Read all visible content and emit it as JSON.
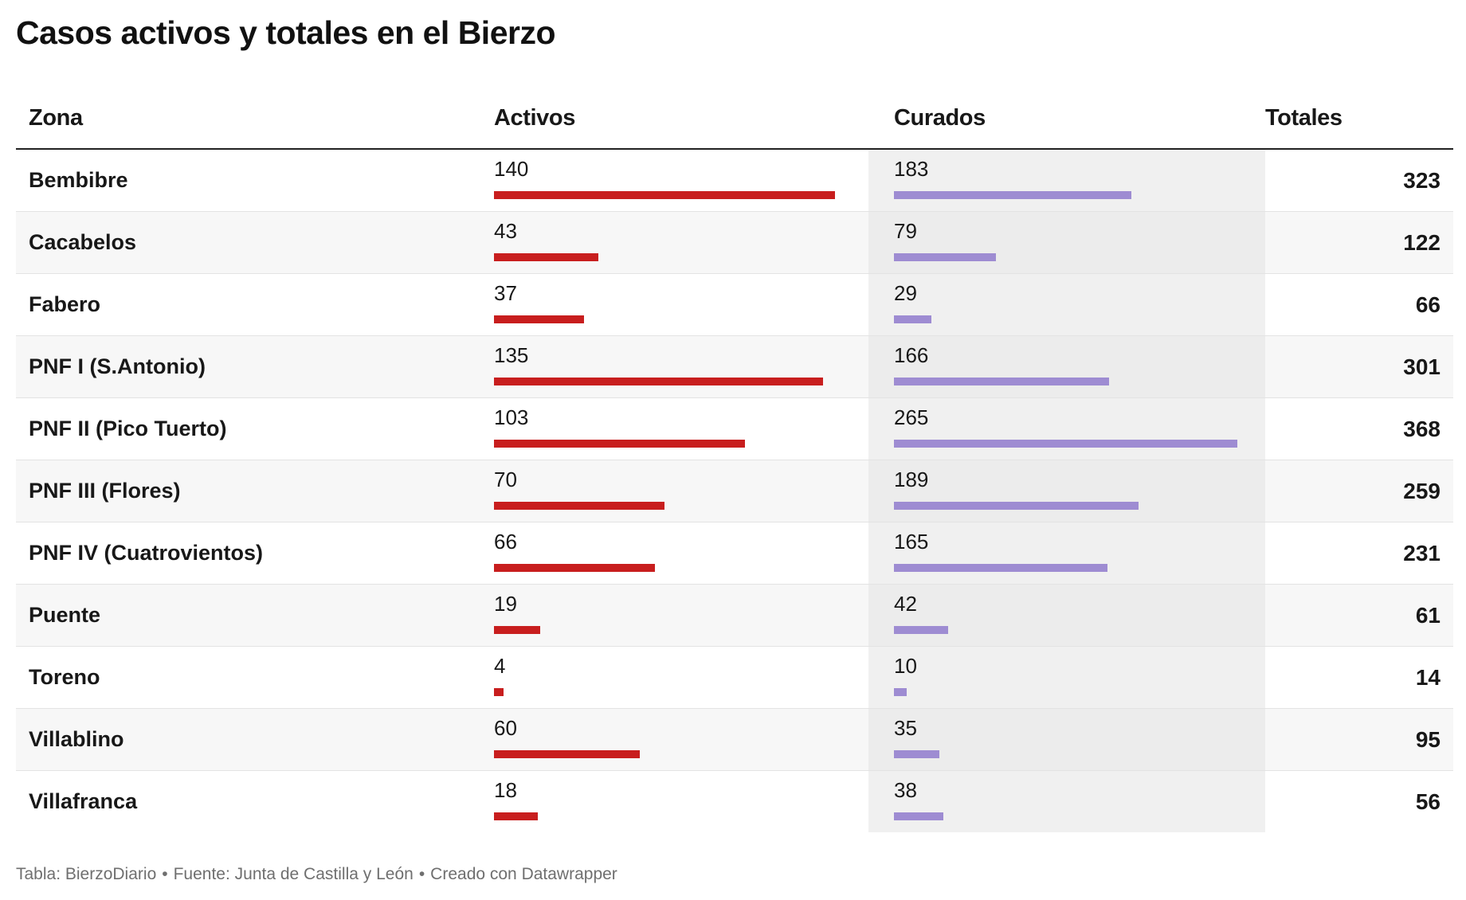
{
  "title": "Casos activos y totales en el Bierzo",
  "headers": {
    "zona": "Zona",
    "activos": "Activos",
    "curados": "Curados",
    "totales": "Totales"
  },
  "colors": {
    "activos_bar": "#c81e1e",
    "curados_bar": "#9e8cd2",
    "curados_column_bg": "#f0f0f0"
  },
  "chart_data": {
    "type": "table",
    "title": "Casos activos y totales en el Bierzo",
    "columns": [
      "Zona",
      "Activos",
      "Curados",
      "Totales"
    ],
    "bar_max": {
      "activos": 140,
      "curados": 265
    },
    "rows": [
      {
        "zona": "Bembibre",
        "activos": 140,
        "curados": 183,
        "totales": 323
      },
      {
        "zona": "Cacabelos",
        "activos": 43,
        "curados": 79,
        "totales": 122
      },
      {
        "zona": "Fabero",
        "activos": 37,
        "curados": 29,
        "totales": 66
      },
      {
        "zona": "PNF I (S.Antonio)",
        "activos": 135,
        "curados": 166,
        "totales": 301
      },
      {
        "zona": "PNF II (Pico Tuerto)",
        "activos": 103,
        "curados": 265,
        "totales": 368
      },
      {
        "zona": "PNF III (Flores)",
        "activos": 70,
        "curados": 189,
        "totales": 259
      },
      {
        "zona": "PNF IV (Cuatrovientos)",
        "activos": 66,
        "curados": 165,
        "totales": 231
      },
      {
        "zona": "Puente",
        "activos": 19,
        "curados": 42,
        "totales": 61
      },
      {
        "zona": "Toreno",
        "activos": 4,
        "curados": 10,
        "totales": 14
      },
      {
        "zona": "Villablino",
        "activos": 60,
        "curados": 35,
        "totales": 95
      },
      {
        "zona": "Villafranca",
        "activos": 18,
        "curados": 38,
        "totales": 56
      }
    ]
  },
  "footer": {
    "tabla": "Tabla: BierzoDiario",
    "fuente": "Fuente: Junta de Castilla y León",
    "creado": "Creado con Datawrapper",
    "separator": "•"
  }
}
